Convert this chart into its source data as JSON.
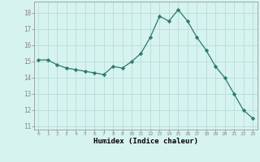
{
  "x": [
    0,
    1,
    2,
    3,
    4,
    5,
    6,
    7,
    8,
    9,
    10,
    11,
    12,
    13,
    14,
    15,
    16,
    17,
    18,
    19,
    20,
    21,
    22,
    23
  ],
  "y": [
    15.1,
    15.1,
    14.8,
    14.6,
    14.5,
    14.4,
    14.3,
    14.2,
    14.7,
    14.6,
    15.0,
    15.5,
    16.5,
    17.8,
    17.5,
    18.2,
    17.5,
    16.5,
    15.7,
    14.7,
    14.0,
    13.0,
    12.0,
    11.5
  ],
  "xlabel": "Humidex (Indice chaleur)",
  "ylim": [
    10.8,
    18.7
  ],
  "xlim": [
    -0.5,
    23.5
  ],
  "yticks": [
    11,
    12,
    13,
    14,
    15,
    16,
    17,
    18
  ],
  "xticks": [
    0,
    1,
    2,
    3,
    4,
    5,
    6,
    7,
    8,
    9,
    10,
    11,
    12,
    13,
    14,
    15,
    16,
    17,
    18,
    19,
    20,
    21,
    22,
    23
  ],
  "line_color": "#2d7a6a",
  "marker": "D",
  "marker_size": 2.2,
  "bg_color": "#d6f3ef",
  "grid_color": "#b8ddd8",
  "axis_color": "#888888"
}
